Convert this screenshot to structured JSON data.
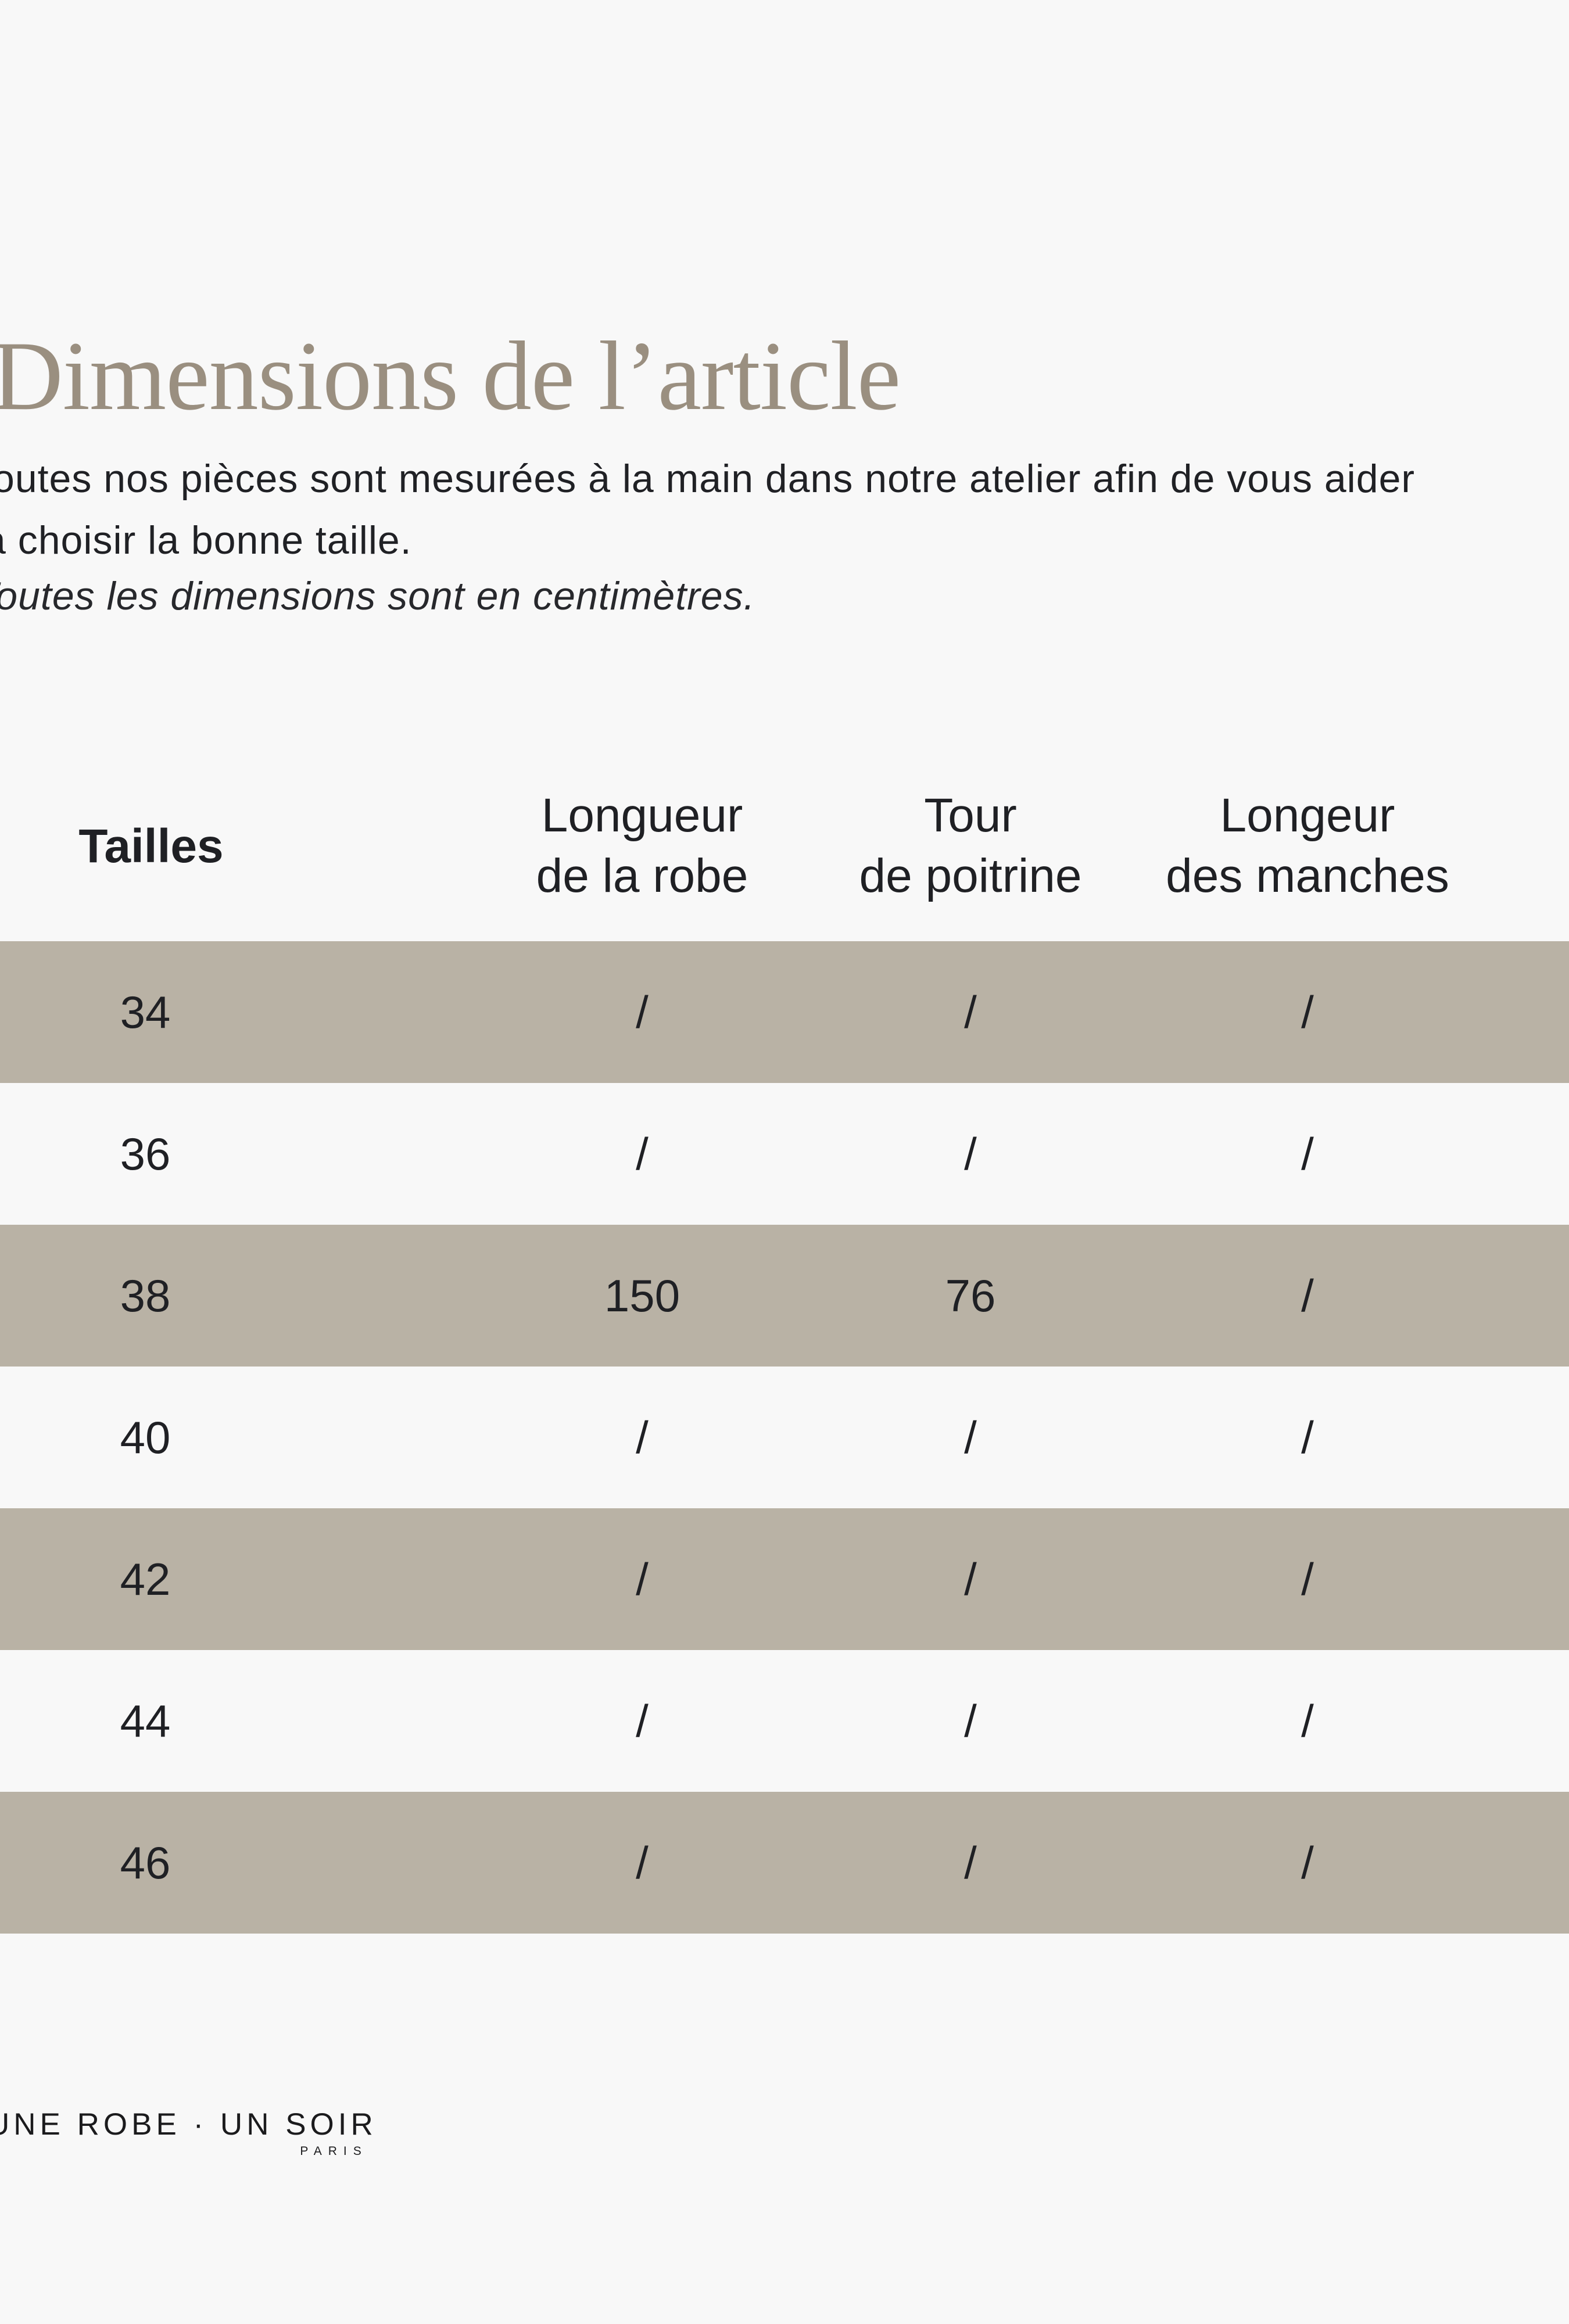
{
  "page": {
    "background": "#f8f8f8"
  },
  "title": {
    "text": "Dimensions de l’article",
    "color": "#9a8f80"
  },
  "intro": {
    "line1": "Toutes nos pièces sont mesurées à la main dans notre atelier afin de vous aider",
    "line2": "à choisir la bonne taille.",
    "note": "Toutes les dimensions sont en centimètres."
  },
  "table": {
    "row_highlight_color": "#b9b2a5",
    "size_column_header": "Tailles",
    "columns": [
      {
        "line1": "Longueur",
        "line2": "de la robe"
      },
      {
        "line1": "Tour",
        "line2": "de poitrine"
      },
      {
        "line1": "Longeur",
        "line2": "des manches"
      }
    ],
    "rows": [
      {
        "size": "34",
        "values": [
          "/",
          "/",
          "/"
        ]
      },
      {
        "size": "36",
        "values": [
          "/",
          "/",
          "/"
        ]
      },
      {
        "size": "38",
        "values": [
          "150",
          "76",
          "/"
        ]
      },
      {
        "size": "40",
        "values": [
          "/",
          "/",
          "/"
        ]
      },
      {
        "size": "42",
        "values": [
          "/",
          "/",
          "/"
        ]
      },
      {
        "size": "44",
        "values": [
          "/",
          "/",
          "/"
        ]
      },
      {
        "size": "46",
        "values": [
          "/",
          "/",
          "/"
        ]
      }
    ]
  },
  "footer": {
    "brand": "UNE ROBE · UN SOIR",
    "city": "PARIS"
  }
}
